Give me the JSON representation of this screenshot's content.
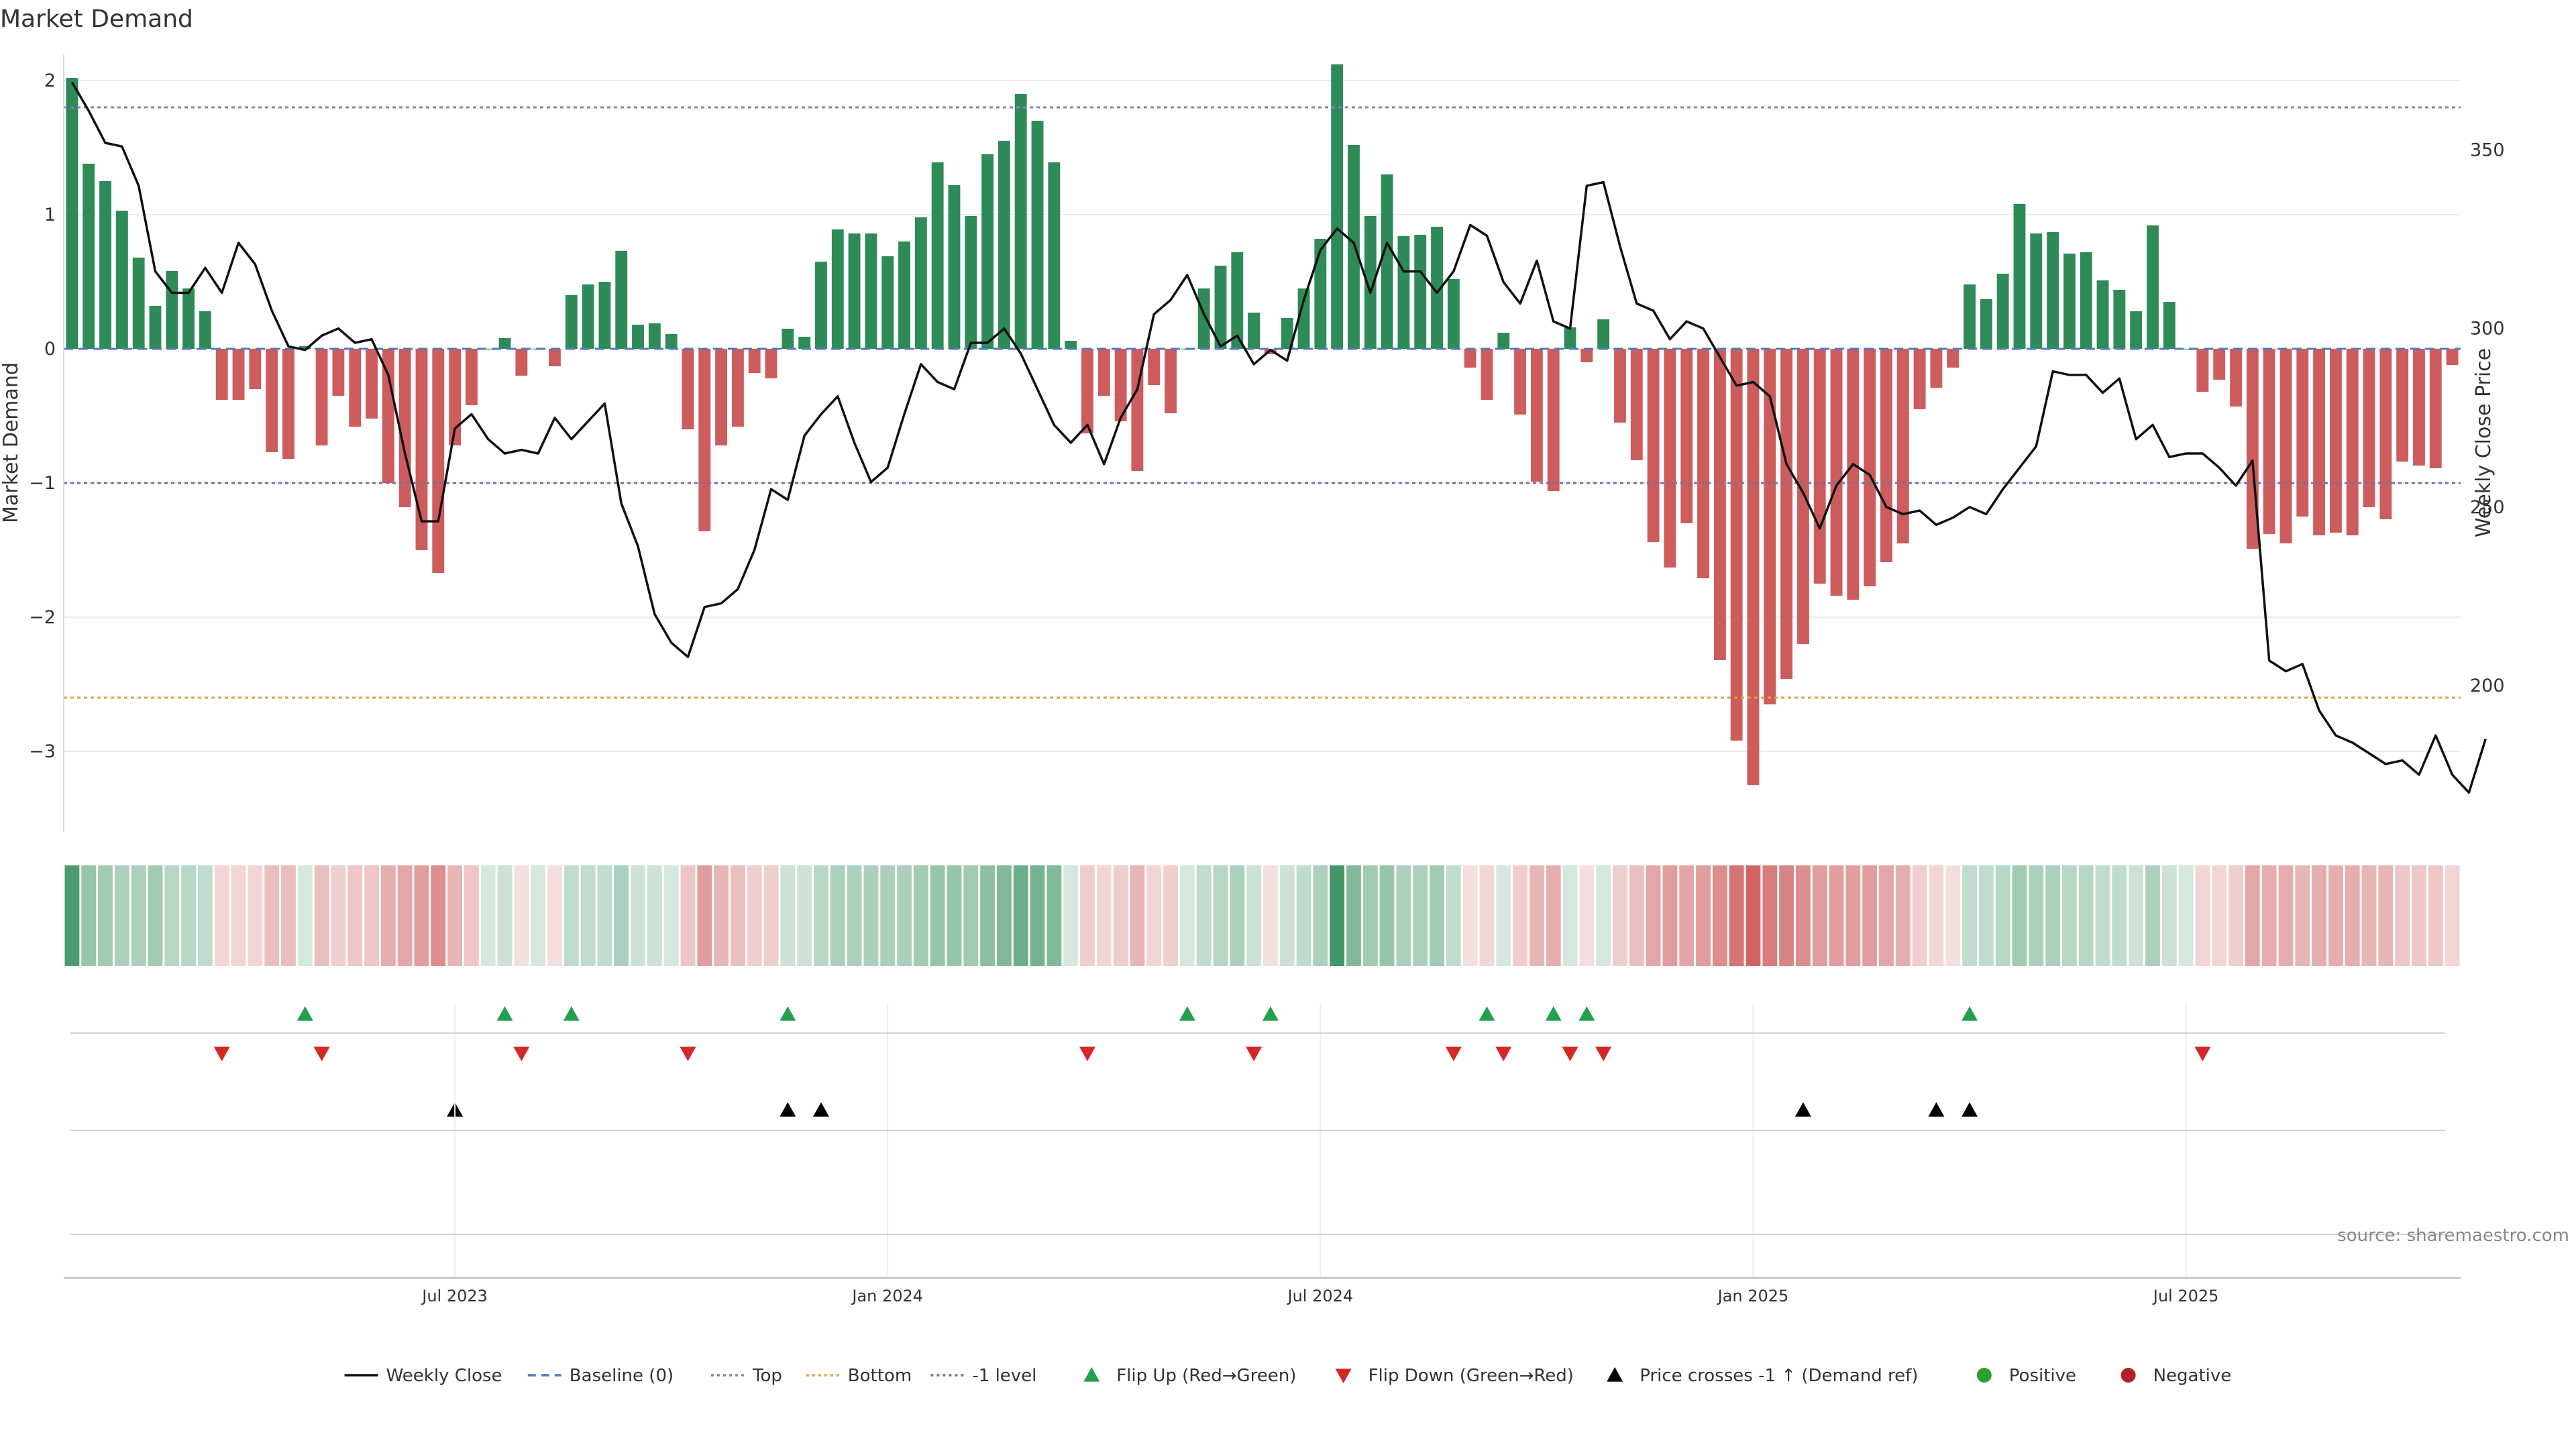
{
  "title": "Market Demand",
  "source": "source: sharemaestro.com",
  "colors": {
    "positive": "#2e8b57",
    "negative": "#cd5c5c",
    "price": "#111111",
    "baseline": "#4e79c7",
    "top": "#8c7fc4",
    "bottom": "#e3a13f",
    "minus1": "#7a6fa0",
    "flip_up": "#22a04b",
    "flip_down": "#d62728",
    "cross": "#000000",
    "dot_pos": "#2ca02c",
    "dot_neg": "#b22222"
  },
  "chart_data": {
    "type": "bar",
    "title": "Market Demand",
    "ylabel": "Market Demand",
    "y2label": "Weekly Close Price",
    "ylim": [
      -3.6,
      2.2
    ],
    "y2lim": [
      159,
      377
    ],
    "yticks": [
      2,
      1,
      0,
      -1,
      -2,
      -3
    ],
    "y2ticks": [
      350,
      300,
      250,
      200
    ],
    "xticks": [
      "Jul 2023",
      "Jan 2024",
      "Jul 2024",
      "Jan 2025",
      "Jul 2025"
    ],
    "reference_lines": {
      "baseline": 0,
      "top": 1.8,
      "bottom": -2.6,
      "minus1": -1
    },
    "grid": true,
    "legend_position": "bottom",
    "demand": [
      2.02,
      1.38,
      1.25,
      1.03,
      0.68,
      0.32,
      0.58,
      0.45,
      0.28,
      -0.38,
      -0.38,
      -0.3,
      -0.77,
      -0.82,
      0.02,
      -0.72,
      -0.35,
      -0.58,
      -0.52,
      -1.0,
      -1.18,
      -1.5,
      -1.67,
      -0.72,
      -0.42,
      0.0,
      0.08,
      -0.2,
      0.0,
      -0.13,
      0.4,
      0.48,
      0.5,
      0.73,
      0.18,
      0.19,
      0.11,
      -0.6,
      -1.36,
      -0.72,
      -0.58,
      -0.18,
      -0.22,
      0.15,
      0.09,
      0.65,
      0.89,
      0.86,
      0.86,
      0.69,
      0.8,
      0.98,
      1.39,
      1.22,
      0.99,
      1.45,
      1.55,
      1.9,
      1.7,
      1.39,
      0.06,
      -0.63,
      -0.35,
      -0.54,
      -0.91,
      -0.27,
      -0.48,
      0.0,
      0.45,
      0.62,
      0.72,
      0.27,
      -0.04,
      0.23,
      0.45,
      0.82,
      2.12,
      1.52,
      0.99,
      1.3,
      0.84,
      0.85,
      0.91,
      0.52,
      -0.14,
      -0.38,
      0.12,
      -0.49,
      -0.99,
      -1.06,
      0.16,
      -0.1,
      0.22,
      -0.55,
      -0.83,
      -1.44,
      -1.63,
      -1.3,
      -1.71,
      -2.32,
      -2.92,
      -3.25,
      -2.65,
      -2.46,
      -2.2,
      -1.75,
      -1.84,
      -1.87,
      -1.77,
      -1.59,
      -1.45,
      -0.45,
      -0.29,
      -0.14,
      0.48,
      0.37,
      0.56,
      1.08,
      0.86,
      0.87,
      0.71,
      0.72,
      0.51,
      0.44,
      0.28,
      0.92,
      0.35,
      0.0,
      -0.32,
      -0.23,
      -0.43,
      -1.49,
      -1.38,
      -1.45,
      -1.25,
      -1.39,
      -1.37,
      -1.39,
      -1.18,
      -1.27,
      -0.84,
      -0.87,
      -0.89,
      -0.12
    ],
    "price": [
      369,
      361,
      352,
      351,
      340,
      316,
      310,
      310,
      317,
      310,
      324,
      318,
      305,
      295,
      294,
      298,
      300,
      296,
      297,
      287,
      265,
      246,
      246,
      272,
      276,
      269,
      265,
      266,
      265,
      275,
      269,
      274,
      279,
      251,
      239,
      220,
      212,
      208,
      222,
      223,
      227,
      238,
      255,
      252,
      270,
      276,
      281,
      268,
      257,
      261,
      276,
      290,
      285,
      283,
      296,
      296,
      300,
      293,
      283,
      273,
      268,
      273,
      262,
      275,
      283,
      304,
      308,
      315,
      304,
      295,
      298,
      290,
      294,
      291,
      308,
      322,
      328,
      324,
      310,
      324,
      316,
      316,
      310,
      316,
      329,
      326,
      313,
      307,
      319,
      302,
      300,
      340,
      341,
      323,
      307,
      305,
      297,
      302,
      300,
      292,
      284,
      285,
      281,
      262,
      254,
      244,
      256,
      262,
      259,
      250,
      248,
      249,
      245,
      247,
      250,
      248,
      255,
      261,
      267,
      288,
      287,
      287,
      282,
      286,
      269,
      273,
      264,
      265,
      265,
      261,
      256,
      263,
      207,
      204,
      206,
      193,
      186,
      184,
      181,
      178,
      179,
      175,
      186,
      175,
      170,
      185
    ],
    "heatmap_opacity": [
      0.85,
      0.5,
      0.45,
      0.4,
      0.4,
      0.45,
      0.35,
      0.35,
      0.3,
      0.25,
      0.25,
      0.25,
      0.4,
      0.4,
      0.2,
      0.4,
      0.3,
      0.35,
      0.35,
      0.5,
      0.55,
      0.6,
      0.7,
      0.45,
      0.35,
      0.2,
      0.25,
      0.2,
      0.2,
      0.2,
      0.3,
      0.3,
      0.3,
      0.4,
      0.25,
      0.25,
      0.2,
      0.35,
      0.6,
      0.45,
      0.4,
      0.3,
      0.3,
      0.25,
      0.25,
      0.35,
      0.4,
      0.4,
      0.4,
      0.4,
      0.4,
      0.45,
      0.5,
      0.5,
      0.45,
      0.55,
      0.6,
      0.7,
      0.65,
      0.6,
      0.2,
      0.3,
      0.25,
      0.3,
      0.45,
      0.25,
      0.3,
      0.2,
      0.3,
      0.35,
      0.4,
      0.25,
      0.2,
      0.25,
      0.3,
      0.4,
      0.9,
      0.6,
      0.45,
      0.5,
      0.4,
      0.4,
      0.45,
      0.3,
      0.2,
      0.25,
      0.2,
      0.3,
      0.45,
      0.5,
      0.2,
      0.2,
      0.2,
      0.3,
      0.4,
      0.55,
      0.6,
      0.55,
      0.6,
      0.7,
      0.85,
      0.95,
      0.8,
      0.75,
      0.7,
      0.6,
      0.6,
      0.6,
      0.6,
      0.55,
      0.5,
      0.3,
      0.25,
      0.2,
      0.3,
      0.3,
      0.35,
      0.45,
      0.4,
      0.4,
      0.35,
      0.35,
      0.3,
      0.3,
      0.25,
      0.4,
      0.25,
      0.2,
      0.25,
      0.25,
      0.3,
      0.55,
      0.5,
      0.5,
      0.45,
      0.5,
      0.5,
      0.5,
      0.45,
      0.45,
      0.35,
      0.35,
      0.35,
      0.25
    ],
    "flip_up_idx": [
      14,
      26,
      30,
      43,
      67,
      72,
      85,
      89,
      91,
      114
    ],
    "flip_down_idx": [
      9,
      15,
      27,
      37,
      61,
      71,
      83,
      86,
      90,
      92,
      128
    ],
    "cross_idx": [
      23,
      43,
      45,
      104,
      112,
      114
    ]
  },
  "legend": [
    {
      "label": "Weekly Close",
      "kind": "line",
      "color": "#111111",
      "dash": ""
    },
    {
      "label": "Baseline (0)",
      "kind": "line",
      "color": "#4e79c7",
      "dash": "12,8"
    },
    {
      "label": "Top",
      "kind": "line",
      "color": "#8c7fc4",
      "dash": "4,5"
    },
    {
      "label": "Bottom",
      "kind": "line",
      "color": "#e3a13f",
      "dash": "4,5"
    },
    {
      "label": "-1 level",
      "kind": "line",
      "color": "#7a6fa0",
      "dash": "4,5"
    },
    {
      "label": "Flip Up (Red→Green)",
      "kind": "tri-up",
      "color": "#22a04b"
    },
    {
      "label": "Flip Down (Green→Red)",
      "kind": "tri-down",
      "color": "#d62728"
    },
    {
      "label": "Price crosses -1 ↑ (Demand ref)",
      "kind": "tri-up",
      "color": "#000000"
    },
    {
      "label": "Positive",
      "kind": "dot",
      "color": "#2ca02c"
    },
    {
      "label": "Negative",
      "kind": "dot",
      "color": "#b22222"
    }
  ]
}
